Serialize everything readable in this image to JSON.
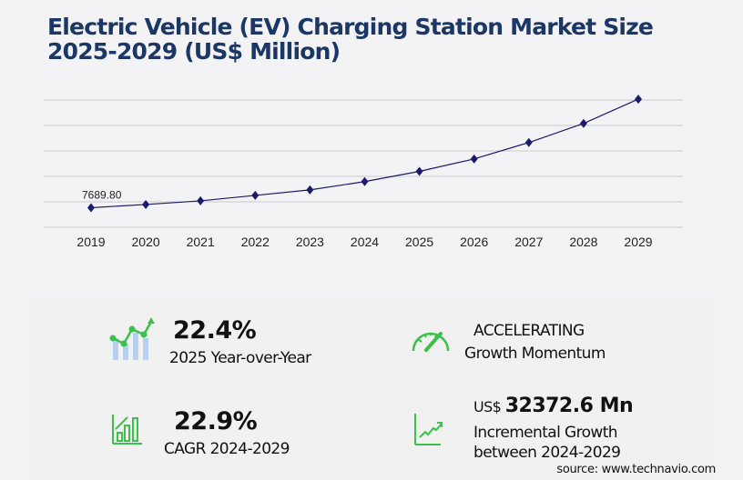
{
  "title_line1": "Electric Vehicle (EV) Charging Station Market Size",
  "title_line2": "2025-2029 (US$ Million)",
  "chart_data": {
    "type": "line",
    "title": "Electric Vehicle (EV) Charging Station Market Size 2025-2029 (US$ Million)",
    "categories": [
      "2019",
      "2020",
      "2021",
      "2022",
      "2023",
      "2024",
      "2025",
      "2026",
      "2027",
      "2028",
      "2029"
    ],
    "values": [
      7689.8,
      8950,
      10380,
      12530,
      14680,
      17945,
      21965,
      26850,
      33300,
      40800,
      50318
    ],
    "data_labels": {
      "2019": "7689.80"
    },
    "ylim": [
      0,
      50000
    ],
    "grid": true,
    "line_color": "#1a1a6e",
    "marker": "diamond"
  },
  "stats": {
    "yoy_value": "22.4%",
    "yoy_label": "2025 Year-over-Year",
    "momentum_value": "ACCELERATING",
    "momentum_label": "Growth Momentum",
    "cagr_value": "22.9%",
    "cagr_label": "CAGR 2024-2029",
    "incr_prefix": "US$",
    "incr_value": "32372.6 Mn",
    "incr_label1": "Incremental Growth",
    "incr_label2": "between 2024-2029"
  },
  "icons": [
    "growth-chart-icon",
    "speedometer-icon",
    "bar-chart-icon",
    "trend-line-icon"
  ],
  "accent_color": "#2ecc40",
  "source": "source: www.technavio.com"
}
